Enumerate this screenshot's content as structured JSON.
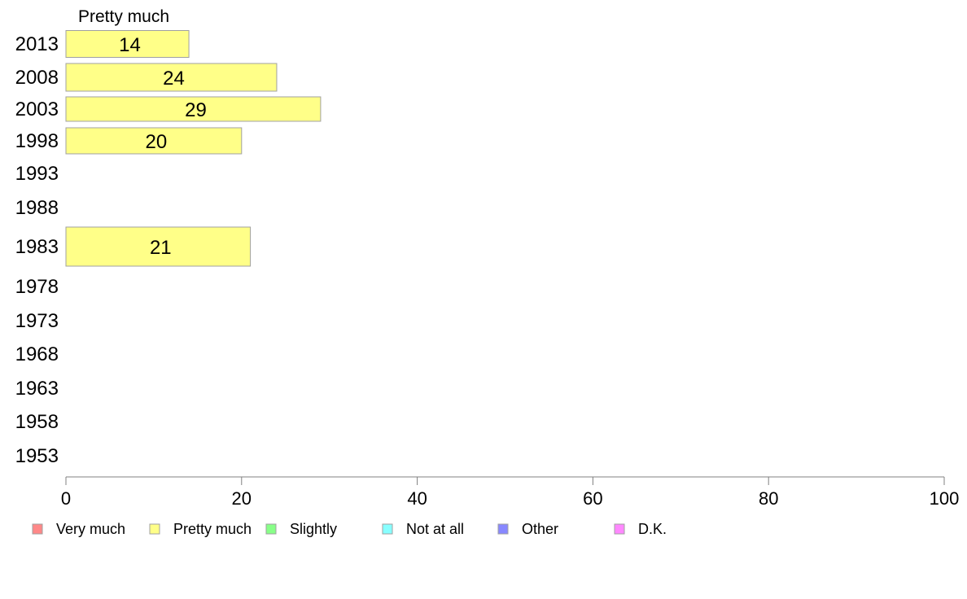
{
  "chart_data": {
    "type": "bar",
    "orientation": "horizontal",
    "series_title": "Pretty much",
    "categories": [
      "2013",
      "2008",
      "2003",
      "1998",
      "1993",
      "1988",
      "1983",
      "1978",
      "1973",
      "1968",
      "1963",
      "1958",
      "1953"
    ],
    "series": [
      {
        "name": "Pretty much",
        "color": "#ffff88",
        "values": [
          14,
          24,
          29,
          20,
          null,
          null,
          21,
          null,
          null,
          null,
          null,
          null,
          null
        ]
      }
    ],
    "xlim": [
      0,
      100
    ],
    "xticks": [
      0,
      20,
      40,
      60,
      80,
      100
    ],
    "grid": false,
    "legend": {
      "placement": "bottom",
      "items": [
        {
          "label": "Very much",
          "color": "#ff8888"
        },
        {
          "label": "Pretty much",
          "color": "#ffff88"
        },
        {
          "label": "Slightly",
          "color": "#88ff88"
        },
        {
          "label": "Not at all",
          "color": "#88ffff"
        },
        {
          "label": "Other",
          "color": "#8888ff"
        },
        {
          "label": "D.K.",
          "color": "#ff88ff"
        }
      ]
    }
  }
}
